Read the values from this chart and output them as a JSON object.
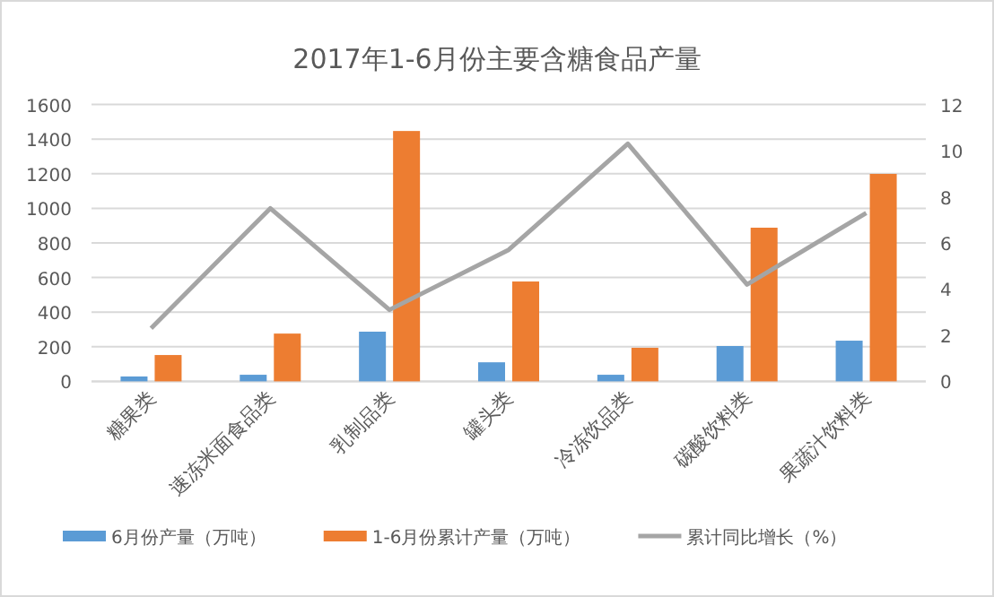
{
  "chart_data": {
    "type": "bar",
    "title": "2017年1-6月份主要含糖食品产量",
    "categories": [
      "糖果类",
      "速冻米面食品类",
      "乳制品类",
      "罐头类",
      "冷冻饮品类",
      "碳酸饮料类",
      "果蔬汁饮料类"
    ],
    "series": [
      {
        "name": "6月份产量（万吨）",
        "color": "#5b9bd5",
        "values": [
          28,
          38,
          287,
          110,
          38,
          204,
          235
        ]
      },
      {
        "name": "1-6月份累计产量（万吨）",
        "color": "#ed7d31",
        "values": [
          152,
          276,
          1447,
          577,
          194,
          888,
          1199
        ]
      },
      {
        "name": "累计同比增长（%）",
        "color": "#a5a5a5",
        "type": "line",
        "axis": "y2",
        "values": [
          2.3,
          7.5,
          3.1,
          5.7,
          10.3,
          4.2,
          7.3
        ]
      }
    ],
    "ylim": [
      0,
      1600
    ],
    "yticks": [
      0,
      200,
      400,
      600,
      800,
      1000,
      1200,
      1400,
      1600
    ],
    "y2lim": [
      0,
      12
    ],
    "y2ticks": [
      0,
      2,
      4,
      6,
      8,
      10,
      12
    ],
    "grid": "y",
    "legend": "bottom"
  }
}
